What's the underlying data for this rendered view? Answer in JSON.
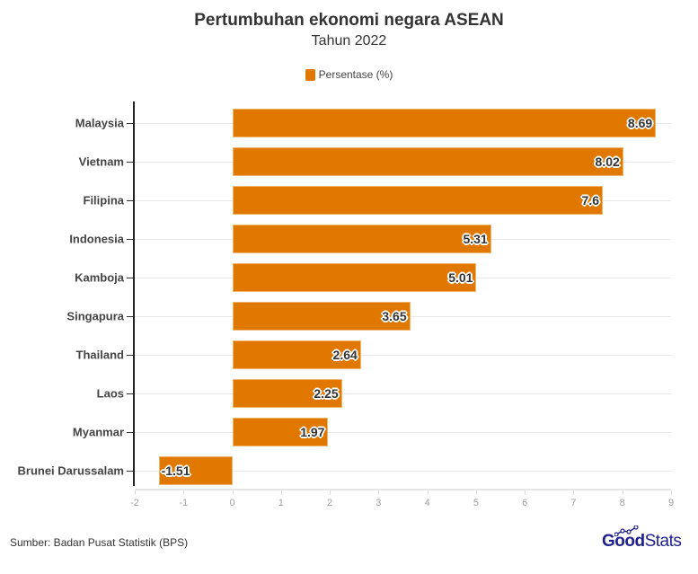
{
  "header": {
    "title": "Pertumbuhan ekonomi negara ASEAN",
    "subtitle": "Tahun 2022"
  },
  "legend": {
    "label": "Persentase (%)",
    "color": "#e07800"
  },
  "footer": {
    "source": "Sumber: Badan Pusat Statistik (BPS)",
    "logo_bold": "Good",
    "logo_light": "Stats"
  },
  "colors": {
    "bar": "#e07800",
    "bar_border": "#f0b46a",
    "logo": "#1d1f8c"
  },
  "chart_data": {
    "type": "bar",
    "orientation": "horizontal",
    "title": "Pertumbuhan ekonomi negara ASEAN",
    "subtitle": "Tahun 2022",
    "categories": [
      "Malaysia",
      "Vietnam",
      "Filipina",
      "Indonesia",
      "Kamboja",
      "Singapura",
      "Thailand",
      "Laos",
      "Myanmar",
      "Brunei Darussalam"
    ],
    "series": [
      {
        "name": "Persentase (%)",
        "values": [
          8.69,
          8.02,
          7.6,
          5.31,
          5.01,
          3.65,
          2.64,
          2.25,
          1.97,
          -1.51
        ]
      }
    ],
    "value_labels": [
      "8.69",
      "8.02",
      "7.6",
      "5.31",
      "5.01",
      "3.65",
      "2.64",
      "2.25",
      "1.97",
      "-1.51"
    ],
    "xlabel": "",
    "ylabel": "",
    "xlim": [
      -2,
      9
    ],
    "xticks": [
      "-2",
      "-1",
      "0",
      "1",
      "2",
      "3",
      "4",
      "5",
      "6",
      "7",
      "8",
      "9"
    ],
    "grid": true,
    "legend_position": "top",
    "source": "Sumber: Badan Pusat Statistik (BPS)"
  }
}
